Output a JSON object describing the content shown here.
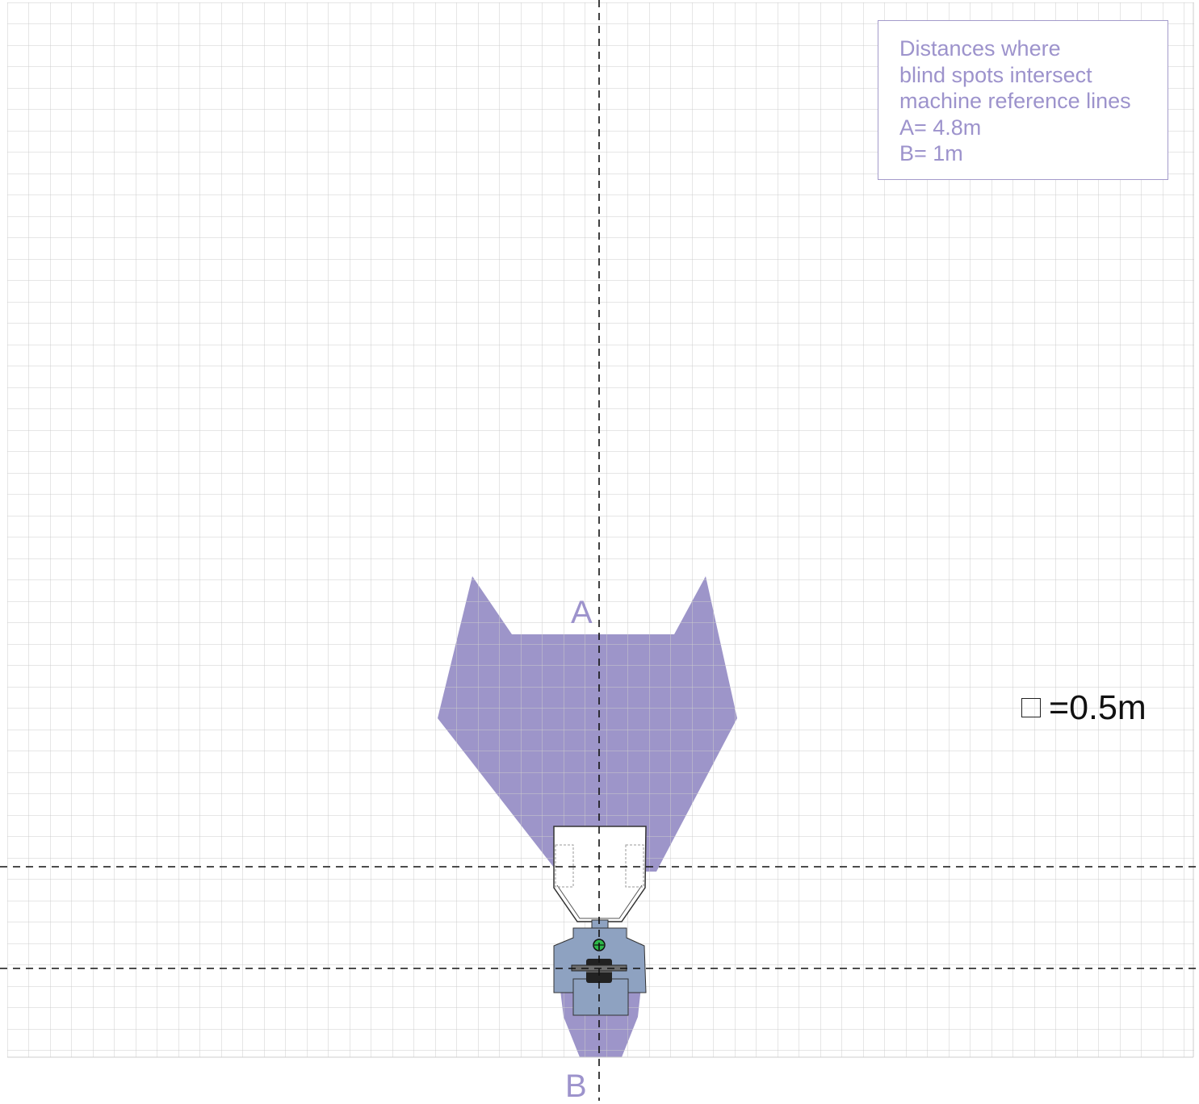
{
  "info_box": {
    "lines": [
      "Distances where",
      "blind spots intersect",
      "machine reference lines",
      "A= 4.8m",
      "B= 1m"
    ]
  },
  "scale_legend": {
    "text": "=0.5m",
    "grid_cell_size_m": 0.5
  },
  "labels": {
    "a": "A",
    "b": "B"
  },
  "colors": {
    "blind_spot": "#9d95c9",
    "grid": "#cccccc",
    "machine_body": "#8ea2c1",
    "bucket": "#ffffff",
    "text_accent": "#9d93cc",
    "reference_line": "#111111"
  }
}
